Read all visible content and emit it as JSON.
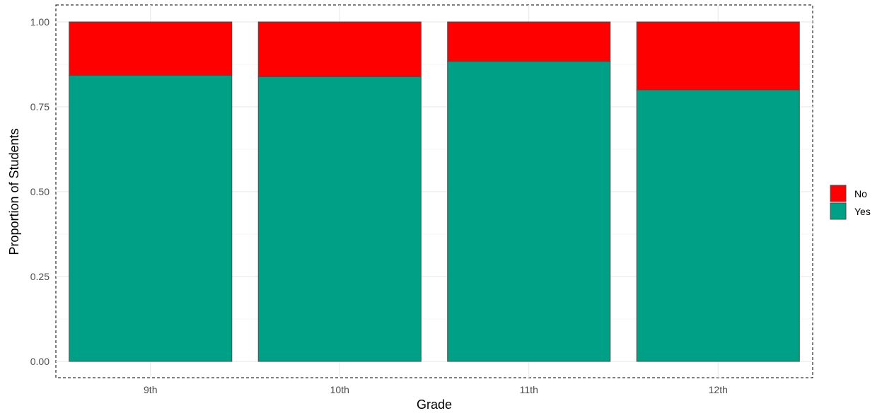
{
  "chart_data": {
    "type": "bar",
    "stacked": true,
    "title": "",
    "xlabel": "Grade",
    "ylabel": "Proportion of Students",
    "categories": [
      "9th",
      "10th",
      "11th",
      "12th"
    ],
    "ylim": [
      0,
      1
    ],
    "yticks": [
      0,
      0.25,
      0.5,
      0.75,
      1
    ],
    "ytick_labels": [
      "0.00",
      "0.25",
      "0.50",
      "0.75",
      "1.00"
    ],
    "grid": true,
    "series": [
      {
        "name": "Yes",
        "color": "#00A087",
        "values": [
          0.843,
          0.839,
          0.884,
          0.8
        ]
      },
      {
        "name": "No",
        "color": "#FF0000",
        "values": [
          0.157,
          0.161,
          0.116,
          0.2
        ]
      }
    ],
    "legend": {
      "position": "right",
      "entries": [
        {
          "name": "No",
          "color": "#FF0000"
        },
        {
          "name": "Yes",
          "color": "#00A087"
        }
      ]
    }
  }
}
